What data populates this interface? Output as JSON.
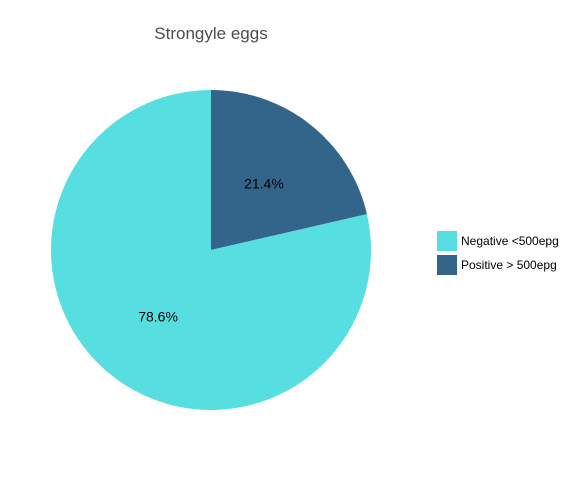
{
  "chart_data": {
    "type": "pie",
    "title": "Strongyle eggs",
    "categories": [
      "Negative <500epg",
      "Positive > 500epg"
    ],
    "values": [
      78.6,
      21.4
    ],
    "labels": [
      "78.6%",
      "21.4%"
    ],
    "colors": [
      "#56DEE0",
      "#33658A"
    ],
    "start_angle_deg": 0,
    "direction": "counterclockwise",
    "legend_position": "right"
  }
}
